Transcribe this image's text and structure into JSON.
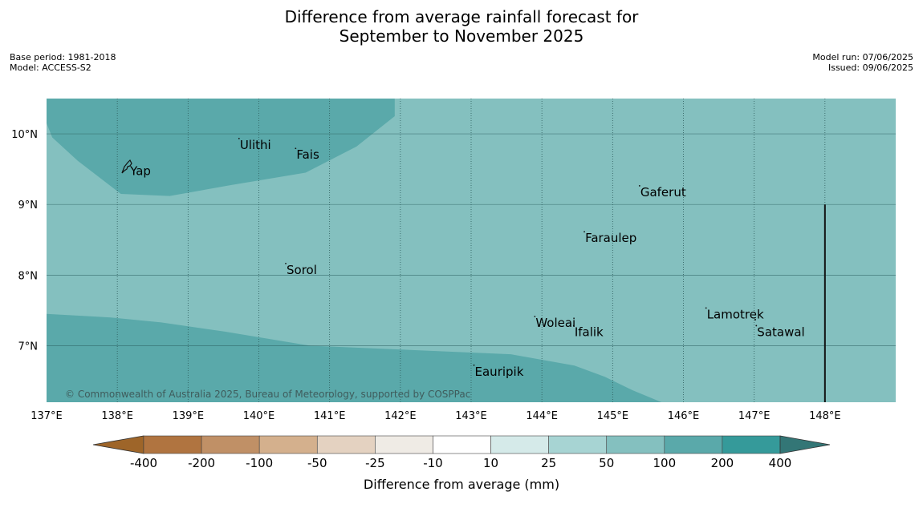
{
  "header": {
    "title_line1": "Difference from average rainfall forecast for",
    "title_line2": "September to November 2025",
    "base_period": "Base period: 1981-2018",
    "model": "Model: ACCESS-S2",
    "model_run": "Model run: 07/06/2025",
    "issued": "Issued: 09/06/2025"
  },
  "map": {
    "lon_range": [
      137,
      149
    ],
    "lat_range": [
      6.2,
      10.5
    ],
    "lon_ticks": [
      137,
      138,
      139,
      140,
      141,
      142,
      143,
      144,
      145,
      146,
      147,
      148
    ],
    "lon_tick_labels": [
      "137°E",
      "138°E",
      "139°E",
      "140°E",
      "141°E",
      "142°E",
      "143°E",
      "144°E",
      "145°E",
      "146°E",
      "147°E",
      "148°E"
    ],
    "lat_ticks": [
      7,
      8,
      9,
      10
    ],
    "lat_tick_labels": [
      "7°N",
      "8°N",
      "9°N",
      "10°N"
    ],
    "copyright": "© Commonwealth of Australia 2025, Bureau of Meteorology, supported by COSPPac",
    "colors": {
      "background": "#84c0bf",
      "wetter": "#5aa9aa",
      "line": "#111111"
    },
    "boundary_meridian": {
      "lon": 148,
      "lat_from": 6.2,
      "lat_to": 9.0
    },
    "wetter_regions": [
      {
        "name": "north-west-wetter-region",
        "coords": [
          [
            137,
            10.5
          ],
          [
            141.92,
            10.5
          ],
          [
            141.92,
            10.25
          ],
          [
            141.38,
            9.82
          ],
          [
            140.66,
            9.45
          ],
          [
            139.58,
            9.27
          ],
          [
            138.74,
            9.12
          ],
          [
            138.05,
            9.15
          ],
          [
            137.44,
            9.62
          ],
          [
            137.08,
            9.95
          ],
          [
            137.0,
            10.15
          ]
        ]
      },
      {
        "name": "south-wetter-region",
        "coords": [
          [
            137,
            7.45
          ],
          [
            137.91,
            7.4
          ],
          [
            138.62,
            7.33
          ],
          [
            139.52,
            7.2
          ],
          [
            140.73,
            7.0
          ],
          [
            143.56,
            6.88
          ],
          [
            144.46,
            6.72
          ],
          [
            144.89,
            6.56
          ],
          [
            145.28,
            6.37
          ],
          [
            145.69,
            6.2
          ],
          [
            137,
            6.2
          ]
        ]
      }
    ],
    "places": [
      {
        "name": "Yap",
        "lon": 138.17,
        "lat": 9.53
      },
      {
        "name": "Ulithi",
        "lon": 139.72,
        "lat": 9.9
      },
      {
        "name": "Fais",
        "lon": 140.52,
        "lat": 9.76
      },
      {
        "name": "Gaferut",
        "lon": 145.38,
        "lat": 9.23
      },
      {
        "name": "Faraulep",
        "lon": 144.6,
        "lat": 8.58
      },
      {
        "name": "Sorol",
        "lon": 140.38,
        "lat": 8.13
      },
      {
        "name": "Woleai",
        "lon": 143.9,
        "lat": 7.38
      },
      {
        "name": "Ifalik",
        "lon": 144.45,
        "lat": 7.25
      },
      {
        "name": "Lamotrek",
        "lon": 146.32,
        "lat": 7.5
      },
      {
        "name": "Satawal",
        "lon": 147.03,
        "lat": 7.25
      },
      {
        "name": "Eauripik",
        "lon": 143.04,
        "lat": 6.69
      }
    ]
  },
  "colorbar": {
    "label": "Difference from average (mm)",
    "ticks": [
      "-400",
      "-200",
      "-100",
      "-50",
      "-25",
      "-10",
      "10",
      "25",
      "50",
      "100",
      "200",
      "400"
    ],
    "colors": [
      "#9e6529",
      "#b07440",
      "#c09066",
      "#d4b08d",
      "#e4d2c1",
      "#efebe5",
      "#ffffff",
      "#d5eae9",
      "#a7d4d3",
      "#84c0bf",
      "#5aa9aa",
      "#359a9a",
      "#337676"
    ]
  }
}
